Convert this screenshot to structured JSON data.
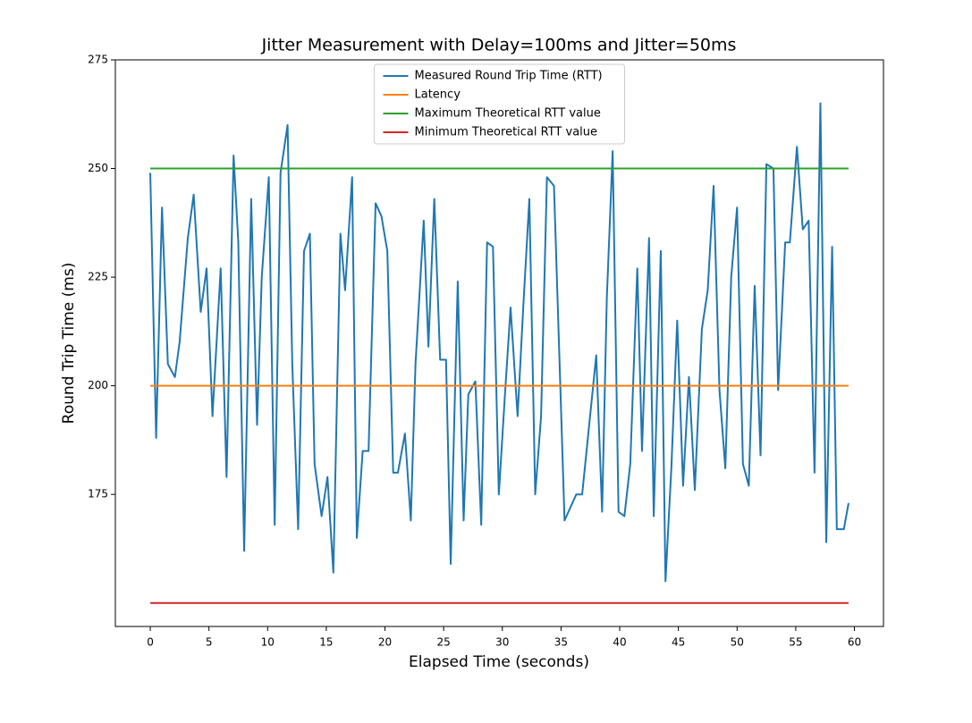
{
  "chart_data": {
    "type": "line",
    "title": "Jitter Measurement with Delay=100ms and Jitter=50ms",
    "x_label": "Elapsed Time (seconds)",
    "y_label": "Round Trip Time (ms)",
    "xlim": [
      -2.975,
      62.475
    ],
    "ylim": [
      144.6,
      275
    ],
    "xticks": [
      0,
      5,
      10,
      15,
      20,
      25,
      30,
      35,
      40,
      45,
      50,
      55,
      60
    ],
    "yticks": [
      175,
      200,
      225,
      250,
      275
    ],
    "legend": "upper center",
    "series": [
      {
        "name": "Measured Round Trip Time (RTT)",
        "color": "#1f77b4",
        "x": [
          0,
          0.5,
          1.0,
          1.5,
          2.1,
          2.5,
          3.2,
          3.7,
          4.3,
          4.8,
          5.3,
          6.0,
          6.5,
          7.1,
          7.5,
          8.0,
          8.6,
          9.1,
          9.5,
          10.1,
          10.6,
          11.1,
          11.7,
          12.1,
          12.6,
          13.1,
          13.6,
          14.0,
          14.6,
          15.1,
          15.6,
          16.2,
          16.6,
          17.2,
          17.6,
          18.1,
          18.6,
          19.2,
          19.7,
          20.2,
          20.7,
          21.1,
          21.7,
          22.2,
          22.6,
          23.3,
          23.7,
          24.2,
          24.7,
          25.2,
          25.6,
          26.2,
          26.7,
          27.1,
          27.7,
          28.2,
          28.7,
          29.2,
          29.7,
          30.2,
          30.7,
          31.3,
          31.8,
          32.3,
          32.8,
          33.3,
          33.8,
          34.4,
          35.3,
          36.3,
          36.8,
          38.0,
          38.5,
          38.9,
          39.4,
          39.9,
          40.4,
          40.9,
          41.5,
          41.9,
          42.5,
          42.9,
          43.5,
          43.9,
          44.4,
          44.9,
          45.4,
          45.9,
          46.4,
          47.0,
          47.5,
          48.0,
          48.5,
          49.0,
          49.5,
          50.0,
          50.5,
          51.0,
          51.5,
          52.0,
          52.5,
          53.1,
          53.5,
          54.1,
          54.5,
          55.1,
          55.6,
          56.1,
          56.6,
          57.1,
          57.6,
          58.1,
          58.5,
          59.1,
          59.5
        ],
        "values": [
          249,
          188,
          241,
          205,
          202,
          210,
          234,
          244,
          217,
          227,
          193,
          227,
          179,
          253,
          233,
          162,
          243,
          191,
          225,
          248,
          168,
          249,
          260,
          205,
          167,
          231,
          235,
          182,
          170,
          179,
          157,
          235,
          222,
          248,
          165,
          185,
          185,
          242,
          239,
          231,
          180,
          180,
          189,
          169,
          205,
          238,
          209,
          243,
          206,
          206,
          159,
          224,
          169,
          198,
          201,
          168,
          233,
          232,
          175,
          197,
          218,
          193,
          219,
          243,
          175,
          193,
          248,
          246,
          169,
          175,
          175,
          207,
          171,
          220,
          254,
          171,
          170,
          182,
          227,
          185,
          234,
          170,
          231,
          155,
          181,
          215,
          177,
          202,
          176,
          213,
          222,
          246,
          199,
          181,
          225,
          241,
          182,
          177,
          223,
          184,
          251,
          250,
          199,
          233,
          233,
          255,
          236,
          238,
          180,
          265,
          164,
          232,
          167,
          167,
          173
        ]
      },
      {
        "name": "Latency",
        "color": "#ff7f0e",
        "x": [
          0,
          59.5
        ],
        "values": [
          200,
          200
        ]
      },
      {
        "name": "Maximum Theoretical RTT value",
        "color": "#2ca02c",
        "x": [
          0,
          59.5
        ],
        "values": [
          250,
          250
        ]
      },
      {
        "name": "Minimum Theoretical RTT value",
        "color": "#d62728",
        "x": [
          0,
          59.5
        ],
        "values": [
          150,
          150
        ]
      }
    ]
  }
}
